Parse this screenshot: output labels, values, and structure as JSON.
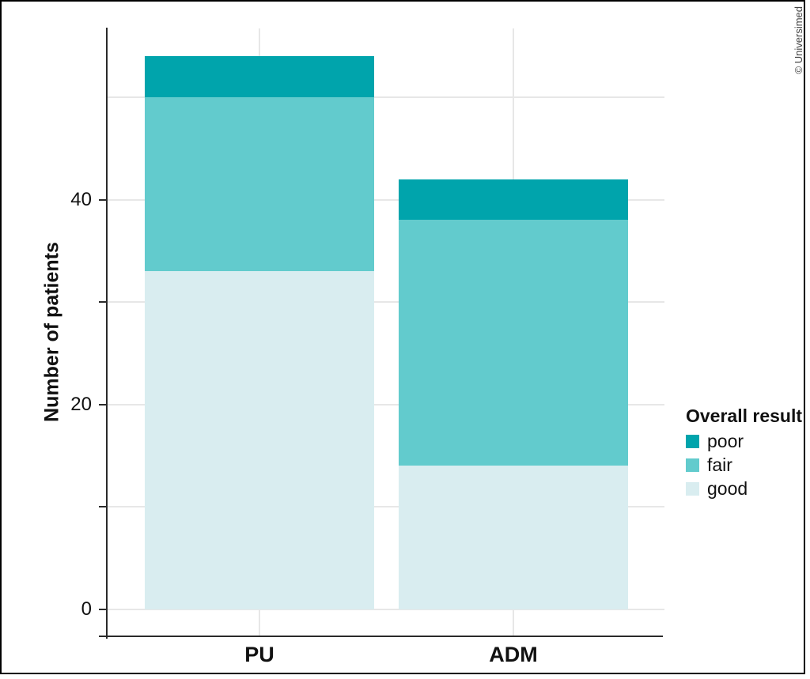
{
  "copyright": "© Universimed",
  "chart_data": {
    "type": "bar",
    "subtype": "stacked",
    "title": "",
    "xlabel": "",
    "ylabel": "Number of patients",
    "categories": [
      "PU",
      "ADM"
    ],
    "series": [
      {
        "name": "good",
        "color": "#d9edf0",
        "values": [
          33,
          14
        ]
      },
      {
        "name": "fair",
        "color": "#62cbcd",
        "values": [
          17,
          24
        ]
      },
      {
        "name": "poor",
        "color": "#00a4ac",
        "values": [
          4,
          4
        ]
      }
    ],
    "stack_order_bottom_to_top": [
      "good",
      "fair",
      "poor"
    ],
    "totals": [
      54,
      42
    ],
    "ylim": [
      0,
      57
    ],
    "grid": true,
    "y_gridline_values": [
      0,
      10,
      20,
      30,
      40,
      50
    ],
    "y_tick_values": [
      0,
      10,
      20,
      30,
      40
    ],
    "y_ticks_labeled": [
      "0",
      "20",
      "40"
    ],
    "legend": {
      "title": "Overall result",
      "position": "right",
      "items": [
        {
          "label": "poor",
          "color": "#00a4ac"
        },
        {
          "label": "fair",
          "color": "#62cbcd"
        },
        {
          "label": "good",
          "color": "#d9edf0"
        }
      ]
    }
  }
}
